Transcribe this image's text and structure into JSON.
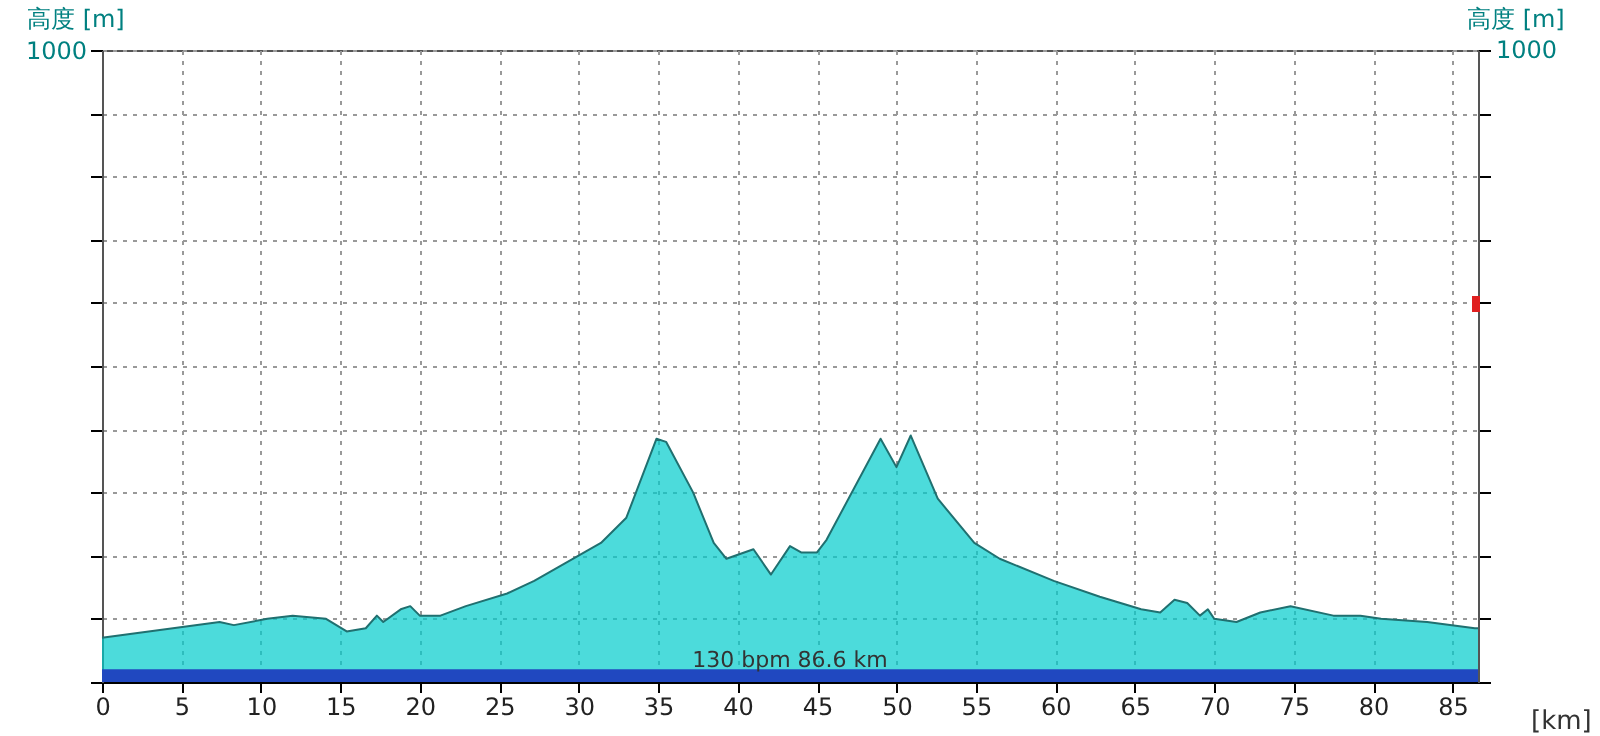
{
  "chart_data": {
    "type": "area",
    "xlabel": "[km]",
    "ylabel": "高度 [m]",
    "y2label": "高度 [m]",
    "x": [
      0,
      7.4,
      8.3,
      10.4,
      12,
      14.1,
      15.4,
      16.6,
      17.3,
      17.7,
      18.8,
      19.4,
      20,
      21.3,
      22.9,
      25.5,
      27.2,
      29.3,
      31.4,
      33,
      34.9,
      35.5,
      37.2,
      38.5,
      39.3,
      41,
      42.1,
      43.3,
      44,
      45,
      45.6,
      49,
      50,
      50.9,
      52.6,
      54.9,
      56.5,
      59.9,
      62.8,
      65.4,
      66.6,
      67.5,
      68.3,
      69.1,
      69.6,
      70,
      71.4,
      72.9,
      74.8,
      77.5,
      79.2,
      80.5,
      83.4,
      86.4,
      86.6
    ],
    "series": [
      {
        "color": "#00cccc",
        "values": [
          70,
          95,
          90,
          100,
          105,
          100,
          80,
          85,
          105,
          95,
          115,
          120,
          105,
          105,
          120,
          140,
          160,
          190,
          220,
          260,
          385,
          380,
          300,
          220,
          195,
          210,
          170,
          215,
          205,
          205,
          225,
          385,
          340,
          390,
          290,
          220,
          195,
          160,
          135,
          115,
          110,
          130,
          125,
          105,
          115,
          100,
          95,
          110,
          120,
          105,
          105,
          100,
          95,
          85,
          85
        ]
      }
    ],
    "xlim": [
      0,
      86.6
    ],
    "xticks": [
      0,
      5,
      10,
      15,
      20,
      25,
      30,
      35,
      40,
      45,
      50,
      55,
      60,
      65,
      70,
      75,
      80,
      85
    ],
    "ylim": [
      0,
      1000
    ],
    "yticks": [
      {
        "value": 0,
        "label": null
      },
      {
        "value": 100,
        "label": null
      },
      {
        "value": 200,
        "label": null
      },
      {
        "value": 300,
        "label": null
      },
      {
        "value": 400,
        "label": null
      },
      {
        "value": 500,
        "label": null
      },
      {
        "value": 600,
        "label": null
      },
      {
        "value": 700,
        "label": null
      },
      {
        "value": 800,
        "label": null
      },
      {
        "value": 900,
        "label": null
      },
      1000
    ],
    "annotations": [
      "1000"
    ],
    "bands": [
      {
        "axis": "y",
        "from": 0,
        "to": 20,
        "color": "#2048c0",
        "label": "130 bpm 86.6 km"
      }
    ],
    "grid": true
  }
}
